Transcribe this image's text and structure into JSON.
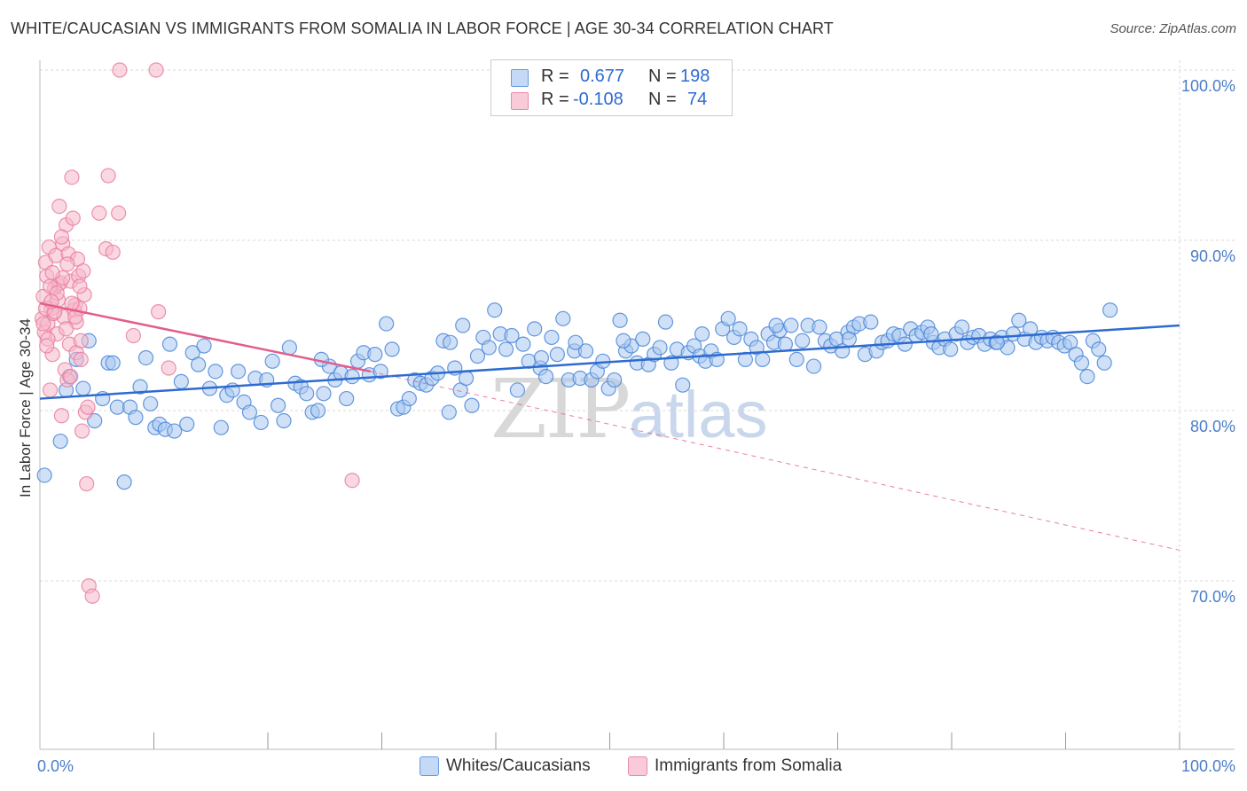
{
  "header": {
    "title": "WHITE/CAUCASIAN VS IMMIGRANTS FROM SOMALIA IN LABOR FORCE | AGE 30-34 CORRELATION CHART",
    "source": "Source: ZipAtlas.com"
  },
  "legend": {
    "series1": {
      "r_label": "R =",
      "r_value": "0.677",
      "n_label": "N =",
      "n_value": "198"
    },
    "series2": {
      "r_label": "R =",
      "r_value": "-0.108",
      "n_label": "N =",
      "n_value": "74"
    }
  },
  "bottom_legend": {
    "series1": "Whites/Caucasians",
    "series2": "Immigrants from Somalia"
  },
  "watermark": {
    "zip": "ZIP",
    "atlas": "atlas"
  },
  "colors": {
    "blue_fill": "#a9c8f0",
    "blue_stroke": "#4a86d8",
    "blue_line": "#2e6bd1",
    "pink_fill": "#f6b8cb",
    "pink_stroke": "#ea7ea0",
    "pink_line": "#e35d8a",
    "grid": "#d9d9d9",
    "tick_text": "#4a7cc7"
  },
  "chart_data": {
    "type": "scatter",
    "title": "WHITE/CAUCASIAN VS IMMIGRANTS FROM SOMALIA IN LABOR FORCE | AGE 30-34 CORRELATION CHART",
    "xlabel": "",
    "ylabel": "In Labor Force | Age 30-34",
    "xlim": [
      0,
      100
    ],
    "ylim": [
      60.5,
      101.5
    ],
    "x_tick_labels": [
      {
        "value": 0,
        "label": "0.0%"
      },
      {
        "value": 100,
        "label": "100.0%"
      }
    ],
    "y_tick_labels": [
      {
        "value": 100,
        "label": "100.0%"
      },
      {
        "value": 90,
        "label": "90.0%"
      },
      {
        "value": 80,
        "label": "80.0%"
      },
      {
        "value": 70,
        "label": "70.0%"
      }
    ],
    "grid": true,
    "series": [
      {
        "name": "Whites/Caucasians",
        "r": 0.677,
        "n": 198,
        "trend": {
          "x": [
            0,
            100
          ],
          "y": [
            80.7,
            85.0
          ],
          "style": "solid"
        },
        "points": [
          [
            0.4,
            76.2
          ],
          [
            1.8,
            78.2
          ],
          [
            2.3,
            81.2
          ],
          [
            2.6,
            82.0
          ],
          [
            3.2,
            83.0
          ],
          [
            3.8,
            81.3
          ],
          [
            4.3,
            84.1
          ],
          [
            4.8,
            79.4
          ],
          [
            5.5,
            80.7
          ],
          [
            6.0,
            82.8
          ],
          [
            6.4,
            82.8
          ],
          [
            6.8,
            80.2
          ],
          [
            7.4,
            75.8
          ],
          [
            7.9,
            80.2
          ],
          [
            8.4,
            79.6
          ],
          [
            8.8,
            81.4
          ],
          [
            9.3,
            83.1
          ],
          [
            9.7,
            80.4
          ],
          [
            10.1,
            79.0
          ],
          [
            10.5,
            79.2
          ],
          [
            11.0,
            78.9
          ],
          [
            11.4,
            83.9
          ],
          [
            11.8,
            78.8
          ],
          [
            12.4,
            81.7
          ],
          [
            12.9,
            79.2
          ],
          [
            13.4,
            83.4
          ],
          [
            13.9,
            82.7
          ],
          [
            14.4,
            83.8
          ],
          [
            14.9,
            81.3
          ],
          [
            15.4,
            82.3
          ],
          [
            15.9,
            79.0
          ],
          [
            16.4,
            80.9
          ],
          [
            16.9,
            81.2
          ],
          [
            17.4,
            82.3
          ],
          [
            17.9,
            80.5
          ],
          [
            18.4,
            79.9
          ],
          [
            18.9,
            81.9
          ],
          [
            19.4,
            79.3
          ],
          [
            19.9,
            81.8
          ],
          [
            20.4,
            82.9
          ],
          [
            20.9,
            80.3
          ],
          [
            21.4,
            79.4
          ],
          [
            21.9,
            83.7
          ],
          [
            22.4,
            81.6
          ],
          [
            22.9,
            81.4
          ],
          [
            23.4,
            81.0
          ],
          [
            23.9,
            79.9
          ],
          [
            24.4,
            80.0
          ],
          [
            24.9,
            81.0
          ],
          [
            25.4,
            82.6
          ],
          [
            25.9,
            81.8
          ],
          [
            26.4,
            82.2
          ],
          [
            26.9,
            80.7
          ],
          [
            27.4,
            82.0
          ],
          [
            27.9,
            82.9
          ],
          [
            28.4,
            83.4
          ],
          [
            28.9,
            82.1
          ],
          [
            29.4,
            83.3
          ],
          [
            29.9,
            82.3
          ],
          [
            30.4,
            85.1
          ],
          [
            30.9,
            83.6
          ],
          [
            31.4,
            80.1
          ],
          [
            31.9,
            80.2
          ],
          [
            32.4,
            80.7
          ],
          [
            32.9,
            81.8
          ],
          [
            33.4,
            81.6
          ],
          [
            33.9,
            81.5
          ],
          [
            34.4,
            81.9
          ],
          [
            34.9,
            82.2
          ],
          [
            35.4,
            84.1
          ],
          [
            35.9,
            79.9
          ],
          [
            36.4,
            82.5
          ],
          [
            36.9,
            81.2
          ],
          [
            37.4,
            81.9
          ],
          [
            37.9,
            80.3
          ],
          [
            38.4,
            83.2
          ],
          [
            38.9,
            84.3
          ],
          [
            39.4,
            83.7
          ],
          [
            39.9,
            85.9
          ],
          [
            40.4,
            84.5
          ],
          [
            40.9,
            83.6
          ],
          [
            41.4,
            84.4
          ],
          [
            41.9,
            81.2
          ],
          [
            42.4,
            83.9
          ],
          [
            42.9,
            82.9
          ],
          [
            43.4,
            84.8
          ],
          [
            43.9,
            82.5
          ],
          [
            44.4,
            82.0
          ],
          [
            44.9,
            84.3
          ],
          [
            45.4,
            83.3
          ],
          [
            45.9,
            85.4
          ],
          [
            46.4,
            81.8
          ],
          [
            46.9,
            83.5
          ],
          [
            47.4,
            81.9
          ],
          [
            47.9,
            83.5
          ],
          [
            48.4,
            81.8
          ],
          [
            48.9,
            82.3
          ],
          [
            49.4,
            82.9
          ],
          [
            49.9,
            81.3
          ],
          [
            50.4,
            81.8
          ],
          [
            50.9,
            85.3
          ],
          [
            51.4,
            83.5
          ],
          [
            51.9,
            83.8
          ],
          [
            52.4,
            82.8
          ],
          [
            52.9,
            84.2
          ],
          [
            53.4,
            82.7
          ],
          [
            53.9,
            83.3
          ],
          [
            54.4,
            83.7
          ],
          [
            54.9,
            85.2
          ],
          [
            55.4,
            82.8
          ],
          [
            55.9,
            83.6
          ],
          [
            56.4,
            81.5
          ],
          [
            56.9,
            83.4
          ],
          [
            57.4,
            83.8
          ],
          [
            57.9,
            83.2
          ],
          [
            58.4,
            82.9
          ],
          [
            58.9,
            83.5
          ],
          [
            59.4,
            83.0
          ],
          [
            59.9,
            84.8
          ],
          [
            60.4,
            85.4
          ],
          [
            60.9,
            84.3
          ],
          [
            61.4,
            84.8
          ],
          [
            61.9,
            83.0
          ],
          [
            62.4,
            84.2
          ],
          [
            62.9,
            83.7
          ],
          [
            63.4,
            83.0
          ],
          [
            63.9,
            84.5
          ],
          [
            64.4,
            84.0
          ],
          [
            64.9,
            84.7
          ],
          [
            65.4,
            83.9
          ],
          [
            65.9,
            85.0
          ],
          [
            66.4,
            83.0
          ],
          [
            66.9,
            84.1
          ],
          [
            67.4,
            85.0
          ],
          [
            67.9,
            82.6
          ],
          [
            68.4,
            84.9
          ],
          [
            68.9,
            84.1
          ],
          [
            69.4,
            83.8
          ],
          [
            69.9,
            84.2
          ],
          [
            70.4,
            83.5
          ],
          [
            70.9,
            84.6
          ],
          [
            71.4,
            84.9
          ],
          [
            71.9,
            85.1
          ],
          [
            72.4,
            83.3
          ],
          [
            72.9,
            85.2
          ],
          [
            73.4,
            83.5
          ],
          [
            73.9,
            84.0
          ],
          [
            74.4,
            84.1
          ],
          [
            74.9,
            84.5
          ],
          [
            75.4,
            84.4
          ],
          [
            75.9,
            83.9
          ],
          [
            76.4,
            84.8
          ],
          [
            76.9,
            84.4
          ],
          [
            77.4,
            84.6
          ],
          [
            77.9,
            84.9
          ],
          [
            78.4,
            84.0
          ],
          [
            78.9,
            83.7
          ],
          [
            79.4,
            84.2
          ],
          [
            79.9,
            83.6
          ],
          [
            80.4,
            84.5
          ],
          [
            80.9,
            84.9
          ],
          [
            81.4,
            84.0
          ],
          [
            81.9,
            84.3
          ],
          [
            82.4,
            84.4
          ],
          [
            82.9,
            83.9
          ],
          [
            83.4,
            84.2
          ],
          [
            83.9,
            84.0
          ],
          [
            84.4,
            84.3
          ],
          [
            84.9,
            83.7
          ],
          [
            85.4,
            84.5
          ],
          [
            85.9,
            85.3
          ],
          [
            86.4,
            84.2
          ],
          [
            86.9,
            84.8
          ],
          [
            87.4,
            84.0
          ],
          [
            87.9,
            84.3
          ],
          [
            88.4,
            84.1
          ],
          [
            88.9,
            84.3
          ],
          [
            89.4,
            84.0
          ],
          [
            89.9,
            83.8
          ],
          [
            90.4,
            84.0
          ],
          [
            90.9,
            83.3
          ],
          [
            91.4,
            82.8
          ],
          [
            91.9,
            82.0
          ],
          [
            92.4,
            84.1
          ],
          [
            92.9,
            83.6
          ],
          [
            93.4,
            82.8
          ],
          [
            93.9,
            85.9
          ],
          [
            24.7,
            83.0
          ],
          [
            37.1,
            85.0
          ],
          [
            44.0,
            83.1
          ],
          [
            51.2,
            84.1
          ],
          [
            58.1,
            84.5
          ],
          [
            64.6,
            85.0
          ],
          [
            71.0,
            84.2
          ],
          [
            78.2,
            84.5
          ],
          [
            84.0,
            84.0
          ],
          [
            36.0,
            84.0
          ],
          [
            47.0,
            84.0
          ]
        ]
      },
      {
        "name": "Immigrants from Somalia",
        "r": -0.108,
        "n": 74,
        "trend": {
          "x": [
            0,
            29
          ],
          "y": [
            86.3,
            82.3
          ],
          "style": "solid",
          "extension": {
            "x": [
              29,
              100
            ],
            "y": [
              82.3,
              71.8
            ],
            "style": "dashed"
          }
        },
        "points": [
          [
            0.2,
            85.4
          ],
          [
            0.3,
            86.7
          ],
          [
            0.4,
            84.6
          ],
          [
            0.5,
            88.7
          ],
          [
            0.6,
            87.9
          ],
          [
            0.7,
            85.1
          ],
          [
            0.8,
            89.6
          ],
          [
            0.9,
            81.2
          ],
          [
            1.0,
            86.0
          ],
          [
            1.1,
            83.3
          ],
          [
            1.2,
            85.7
          ],
          [
            1.3,
            87.2
          ],
          [
            1.4,
            89.1
          ],
          [
            1.5,
            84.5
          ],
          [
            1.6,
            87.4
          ],
          [
            1.7,
            92.0
          ],
          [
            1.8,
            87.5
          ],
          [
            1.9,
            79.7
          ],
          [
            2.0,
            89.8
          ],
          [
            2.1,
            85.5
          ],
          [
            2.2,
            82.4
          ],
          [
            2.3,
            90.9
          ],
          [
            2.4,
            81.8
          ],
          [
            2.5,
            89.2
          ],
          [
            2.6,
            83.9
          ],
          [
            2.7,
            87.6
          ],
          [
            2.8,
            93.7
          ],
          [
            2.9,
            91.3
          ],
          [
            3.0,
            85.9
          ],
          [
            3.1,
            86.2
          ],
          [
            3.2,
            83.4
          ],
          [
            3.3,
            88.9
          ],
          [
            3.4,
            87.9
          ],
          [
            3.5,
            86.0
          ],
          [
            3.6,
            84.1
          ],
          [
            3.7,
            78.8
          ],
          [
            3.8,
            88.2
          ],
          [
            3.9,
            86.8
          ],
          [
            4.0,
            79.9
          ],
          [
            4.1,
            75.7
          ],
          [
            4.2,
            80.2
          ],
          [
            4.3,
            69.7
          ],
          [
            4.6,
            69.1
          ],
          [
            5.2,
            91.6
          ],
          [
            5.8,
            89.5
          ],
          [
            6.0,
            93.8
          ],
          [
            6.4,
            89.3
          ],
          [
            6.9,
            91.6
          ],
          [
            7.0,
            100.0
          ],
          [
            8.2,
            84.4
          ],
          [
            10.2,
            100.0
          ],
          [
            10.4,
            85.8
          ],
          [
            11.3,
            82.5
          ],
          [
            27.4,
            75.9
          ],
          [
            0.5,
            86.0
          ],
          [
            0.9,
            87.3
          ],
          [
            1.3,
            85.8
          ],
          [
            1.6,
            86.5
          ],
          [
            2.0,
            87.8
          ],
          [
            2.4,
            88.6
          ],
          [
            2.8,
            86.3
          ],
          [
            3.2,
            85.2
          ],
          [
            3.6,
            83.0
          ],
          [
            0.3,
            85.1
          ],
          [
            0.7,
            84.2
          ],
          [
            1.1,
            88.1
          ],
          [
            1.5,
            86.9
          ],
          [
            1.9,
            90.2
          ],
          [
            2.3,
            84.8
          ],
          [
            2.7,
            82.0
          ],
          [
            3.1,
            85.5
          ],
          [
            3.5,
            87.3
          ],
          [
            0.6,
            83.8
          ],
          [
            1.0,
            86.4
          ]
        ]
      }
    ]
  }
}
